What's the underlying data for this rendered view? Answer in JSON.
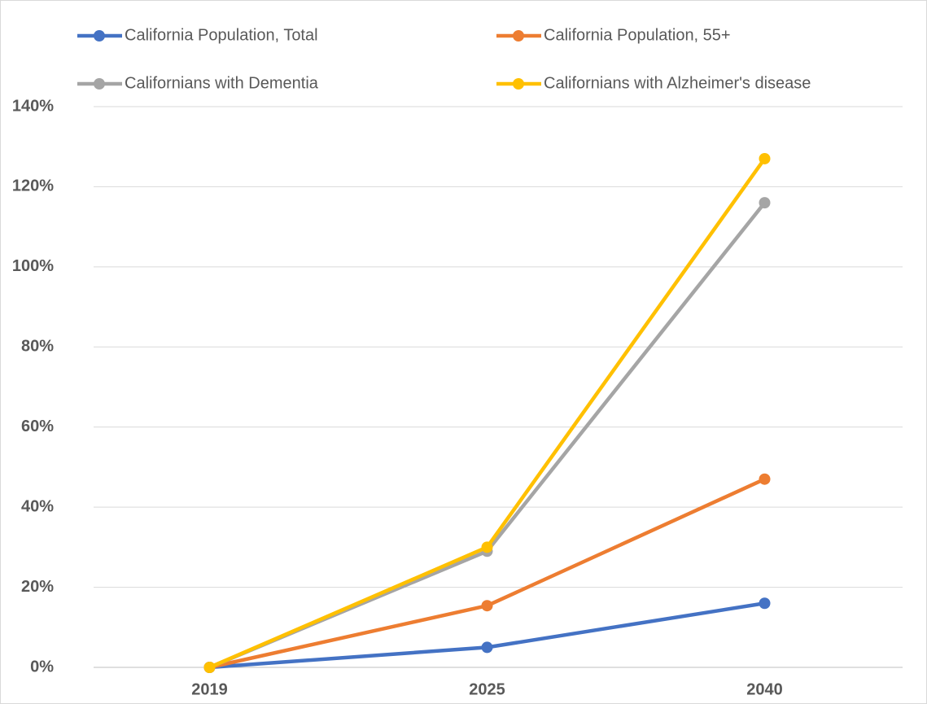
{
  "chart_data": {
    "type": "line",
    "categories": [
      "2019",
      "2025",
      "2040"
    ],
    "series": [
      {
        "name": "California Population, Total",
        "color": "#4472c4",
        "values": [
          0,
          5,
          16
        ]
      },
      {
        "name": "California Population, 55+",
        "color": "#ed7d31",
        "values": [
          0,
          15.4,
          47
        ]
      },
      {
        "name": "Californians with Dementia",
        "color": "#a5a5a5",
        "values": [
          0,
          29,
          116
        ]
      },
      {
        "name": "Californians with Alzheimer's disease",
        "color": "#ffc000",
        "values": [
          0,
          30,
          127
        ]
      }
    ],
    "ylim": [
      0,
      140
    ],
    "yticks": [
      {
        "value": 0,
        "label": "0%"
      },
      {
        "value": 20,
        "label": "20%"
      },
      {
        "value": 40,
        "label": "40%"
      },
      {
        "value": 60,
        "label": "60%"
      },
      {
        "value": 80,
        "label": "80%"
      },
      {
        "value": 100,
        "label": "100%"
      },
      {
        "value": 120,
        "label": "120%"
      },
      {
        "value": 140,
        "label": "140%"
      }
    ],
    "grid": true,
    "legend": "top"
  }
}
